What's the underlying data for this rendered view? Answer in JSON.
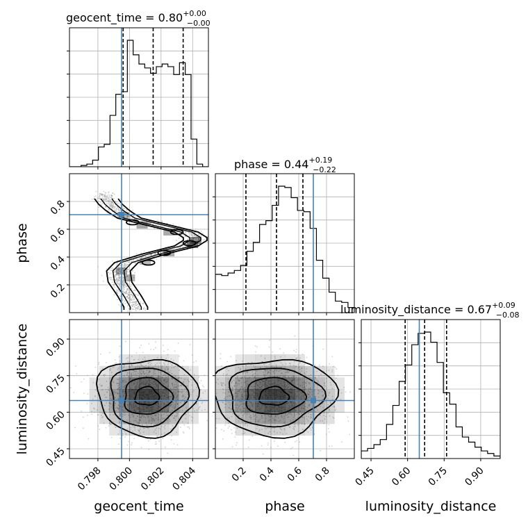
{
  "chart_data": {
    "type": "corner",
    "parameters": [
      {
        "key": "geocent_time",
        "label": "geocent_time",
        "title_prefix": "geocent_time = ",
        "median": "0.80",
        "plus": "+0.00",
        "minus": "−0.00",
        "truth": 0.7995,
        "quantiles": [
          0.7996,
          0.8015,
          0.8034
        ],
        "range": [
          0.7962,
          0.805
        ],
        "ticks": [
          "0.798",
          "0.800",
          "0.802",
          "0.804"
        ],
        "tick_values": [
          0.798,
          0.8,
          0.802,
          0.804
        ]
      },
      {
        "key": "phase",
        "label": "phase",
        "title_prefix": "phase = ",
        "median": "0.44",
        "plus": "+0.19",
        "minus": "−0.22",
        "truth": 0.705,
        "quantiles": [
          0.22,
          0.44,
          0.63
        ],
        "range": [
          0.0,
          1.0
        ],
        "ticks": [
          "0.2",
          "0.4",
          "0.6",
          "0.8"
        ],
        "tick_values": [
          0.2,
          0.4,
          0.6,
          0.8
        ]
      },
      {
        "key": "luminosity_distance",
        "label": "luminosity_distance",
        "title_prefix": "luminosity_distance = ",
        "median": "0.67",
        "plus": "+0.09",
        "minus": "−0.08",
        "truth": 0.648,
        "quantiles": [
          0.59,
          0.67,
          0.76
        ],
        "range": [
          0.41,
          0.98
        ],
        "ticks": [
          "0.45",
          "0.60",
          "0.75",
          "0.90"
        ],
        "tick_values": [
          0.45,
          0.6,
          0.75,
          0.9
        ]
      }
    ],
    "histograms": {
      "geocent_time": [
        0.0,
        0.0,
        0.01,
        0.02,
        0.05,
        0.15,
        0.17,
        0.39,
        0.55,
        0.57,
        0.96,
        0.85,
        0.78,
        0.75,
        0.71,
        0.76,
        0.78,
        0.76,
        0.7,
        0.79,
        0.7,
        0.21,
        0.02,
        0.0
      ],
      "phase": [
        0.3,
        0.29,
        0.31,
        0.33,
        0.37,
        0.48,
        0.55,
        0.69,
        0.72,
        0.84,
        0.99,
        0.98,
        0.9,
        0.8,
        0.79,
        0.66,
        0.41,
        0.27,
        0.16,
        0.09,
        0.08,
        0.04
      ],
      "luminosity_distance": [
        0.06,
        0.08,
        0.11,
        0.15,
        0.27,
        0.42,
        0.61,
        0.74,
        0.9,
        0.99,
        1.0,
        0.92,
        0.76,
        0.52,
        0.43,
        0.25,
        0.17,
        0.13,
        0.09,
        0.06,
        0.04,
        0.02
      ]
    },
    "truth_markers": "steelblue lines at injected values",
    "grid": true
  },
  "colors": {
    "truth": "#4682b4",
    "hist": "#000000",
    "grid": "#b0b0b0",
    "density": "#000000",
    "scatter": "#9a9a9a"
  }
}
